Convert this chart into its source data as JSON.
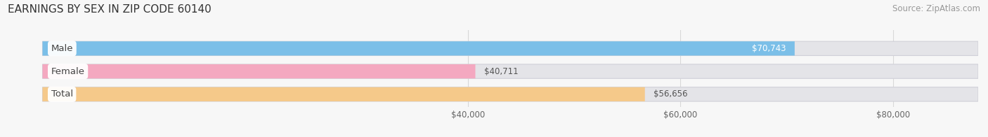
{
  "title": "EARNINGS BY SEX IN ZIP CODE 60140",
  "source": "Source: ZipAtlas.com",
  "categories": [
    "Male",
    "Female",
    "Total"
  ],
  "values": [
    70743,
    40711,
    56656
  ],
  "bar_colors": [
    "#7bbfe8",
    "#f4a8c0",
    "#f5c98a"
  ],
  "bar_bg_color": "#e4e4e8",
  "bar_outline_color": "#d0d0d8",
  "xlim_data_min": 0,
  "xlim_data_max": 88000,
  "xticks": [
    40000,
    60000,
    80000
  ],
  "xtick_labels": [
    "$40,000",
    "$60,000",
    "$80,000"
  ],
  "value_labels": [
    "$70,743",
    "$40,711",
    "$56,656"
  ],
  "value_label_inside": [
    true,
    false,
    false
  ],
  "figsize": [
    14.06,
    1.96
  ],
  "dpi": 100,
  "bar_height": 0.62,
  "category_label_fontsize": 9.5,
  "value_label_fontsize": 8.5,
  "title_fontsize": 11,
  "source_fontsize": 8.5,
  "bg_color": "#f7f7f7",
  "grid_color": "#d8d8d8"
}
